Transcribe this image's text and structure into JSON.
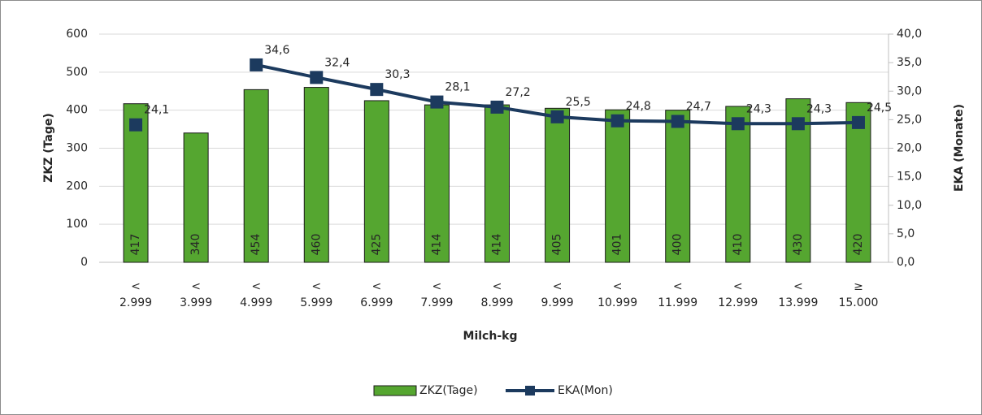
{
  "chart_data": {
    "type": "bar-line",
    "x_label": "Milch-kg",
    "y_label": "ZKZ (Tage)",
    "y2_label": "EKA (Monate)",
    "categories": [
      "< 2.999",
      "< 3.999",
      "< 4.999",
      "< 5.999",
      "< 6.999",
      "< 7.999",
      "< 8.999",
      "< 9.999",
      "< 10.999",
      "< 11.999",
      "< 12.999",
      "< 13.999",
      "≥ 15.000"
    ],
    "series": [
      {
        "name": "ZKZ(Tage)",
        "type": "bar",
        "color": "#55a630",
        "values": [
          417,
          340,
          454,
          460,
          425,
          414,
          414,
          405,
          401,
          400,
          410,
          430,
          420
        ]
      },
      {
        "name": "EKA(Mon)",
        "type": "line",
        "axis": "y2",
        "color": "#1c3a5e",
        "values": [
          24.1,
          null,
          34.6,
          32.4,
          30.3,
          28.1,
          27.2,
          25.5,
          24.8,
          24.7,
          24.3,
          24.3,
          24.5
        ],
        "value_labels": [
          "24,1",
          null,
          "34,6",
          "32,4",
          "30,3",
          "28,1",
          "27,2",
          "25,5",
          "24,8",
          "24,7",
          "24,3",
          "24,3",
          "24,5"
        ]
      }
    ],
    "ylim": [
      0,
      600
    ],
    "yticks": [
      0,
      100,
      200,
      300,
      400,
      500,
      600
    ],
    "y2lim": [
      0,
      40
    ],
    "y2ticks": [
      {
        "value": 0,
        "label": "0,0"
      },
      {
        "value": 5,
        "label": "5,0"
      },
      {
        "value": 10,
        "label": "10,0"
      },
      {
        "value": 15,
        "label": "15,0"
      },
      {
        "value": 20,
        "label": "20,0"
      },
      {
        "value": 25,
        "label": "25,0"
      },
      {
        "value": 30,
        "label": "30,0"
      },
      {
        "value": 35,
        "label": "35,0"
      },
      {
        "value": 40,
        "label": "40,0"
      }
    ],
    "grid": true,
    "legend": "bottom"
  }
}
